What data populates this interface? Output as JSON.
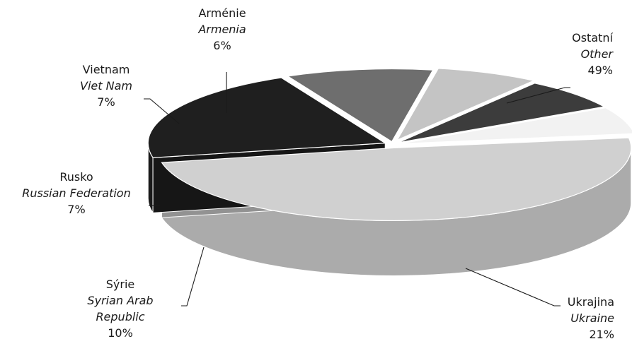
{
  "chart_data": {
    "type": "pie",
    "style": "3d-exploded-perspective",
    "unit": "%",
    "slices": [
      {
        "label_cs": "Ostatní",
        "label_en": "Other",
        "value": 49,
        "pct_label": "49%",
        "color": "#d0d0d0"
      },
      {
        "label_cs": "Ukrajina",
        "label_en": "Ukraine",
        "value": 21,
        "pct_label": "21%",
        "color": "#1f1f1f"
      },
      {
        "label_cs": "Sýrie",
        "label_en": "Syrian Arab Republic",
        "label_en_lines": [
          "Syrian Arab",
          "Republic"
        ],
        "value": 10,
        "pct_label": "10%",
        "color": "#6e6e6e"
      },
      {
        "label_cs": "Rusko",
        "label_en": "Russian Federation",
        "value": 7,
        "pct_label": "7%",
        "color": "#c4c4c4"
      },
      {
        "label_cs": "Vietnam",
        "label_en": "Viet Nam",
        "value": 7,
        "pct_label": "7%",
        "color": "#3c3c3c"
      },
      {
        "label_cs": "Arménie",
        "label_en": "Armenia",
        "value": 6,
        "pct_label": "6%",
        "color": "#f2f2f2"
      }
    ]
  }
}
